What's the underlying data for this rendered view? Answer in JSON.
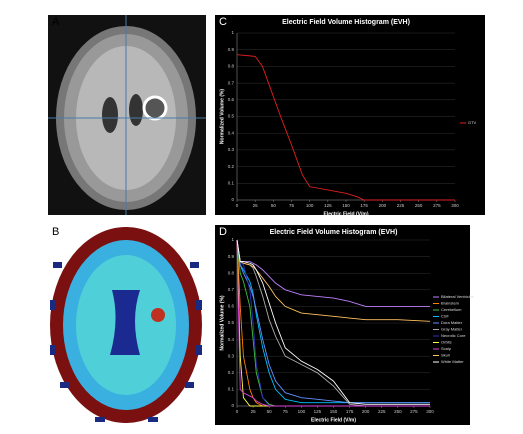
{
  "panel_labels": [
    "A",
    "B",
    "C",
    "D"
  ],
  "chart_data": [
    {
      "type": "line",
      "title": "Electric Field Volume Histogram (EVH)",
      "x_label": "Electric Field (V/m)",
      "y_label": "Normalized Volume (%)",
      "x": [
        0,
        25,
        35,
        50,
        60,
        75,
        90,
        100,
        125,
        150,
        165,
        175,
        200,
        250,
        300
      ],
      "series": [
        {
          "name": "GTV",
          "color": "#e02020",
          "values": [
            0.87,
            0.86,
            0.8,
            0.62,
            0.5,
            0.33,
            0.15,
            0.08,
            0.06,
            0.04,
            0.02,
            0,
            0,
            0,
            0
          ]
        }
      ],
      "xlim": [
        0,
        300
      ],
      "ylim": [
        0,
        1
      ],
      "xticks": [
        0,
        25,
        50,
        75,
        100,
        125,
        150,
        175,
        200,
        225,
        250,
        275,
        300
      ],
      "yticks": [
        0,
        0.1,
        0.2,
        0.3,
        0.4,
        0.5,
        0.6,
        0.7,
        0.8,
        0.9,
        1
      ],
      "grid": true,
      "legend": "right"
    },
    {
      "type": "line",
      "title": "Electric Field Volume Histogram (EVH)",
      "x_label": "Electric Field (V/m)",
      "y_label": "Normalized Volume (%)",
      "x": [
        0,
        5,
        10,
        20,
        25,
        30,
        40,
        50,
        60,
        75,
        100,
        125,
        150,
        175,
        200,
        250,
        300
      ],
      "series": [
        {
          "name": "Bilateral Ventricles",
          "color": "#c080ff",
          "values": [
            1,
            0.87,
            0.87,
            0.87,
            0.86,
            0.85,
            0.82,
            0.78,
            0.74,
            0.7,
            0.67,
            0.66,
            0.65,
            0.63,
            0.6,
            0.6,
            0.6
          ]
        },
        {
          "name": "Brainstem",
          "color": "#ff8000",
          "values": [
            1,
            0.6,
            0.3,
            0.1,
            0.05,
            0.02,
            0,
            0,
            0,
            0,
            0,
            0,
            0,
            0,
            0,
            0,
            0
          ]
        },
        {
          "name": "Cerebellum",
          "color": "#40c040",
          "values": [
            1,
            0.8,
            0.75,
            0.6,
            0.4,
            0.2,
            0.05,
            0.01,
            0,
            0,
            0,
            0,
            0,
            0,
            0,
            0,
            0
          ]
        },
        {
          "name": "CSF",
          "color": "#00c0ff",
          "values": [
            1,
            0.85,
            0.82,
            0.75,
            0.68,
            0.55,
            0.35,
            0.2,
            0.1,
            0.04,
            0.02,
            0.02,
            0.02,
            0.02,
            0.02,
            0.02,
            0.02
          ]
        },
        {
          "name": "Dura Matter",
          "color": "#6090ff",
          "values": [
            1,
            0.85,
            0.8,
            0.72,
            0.66,
            0.58,
            0.4,
            0.25,
            0.15,
            0.08,
            0.05,
            0.04,
            0.03,
            0.02,
            0.02,
            0.02,
            0.02
          ]
        },
        {
          "name": "Gray Matter",
          "color": "#aaaaaa",
          "values": [
            1,
            0.87,
            0.86,
            0.85,
            0.83,
            0.78,
            0.66,
            0.52,
            0.42,
            0.3,
            0.25,
            0.2,
            0.12,
            0.01,
            0,
            0,
            0
          ]
        },
        {
          "name": "Necrotic Core",
          "color": "#3030c0",
          "values": [
            1,
            0.87,
            0.85,
            0.7,
            0.5,
            0.25,
            0.05,
            0,
            0,
            0,
            0,
            0,
            0,
            0,
            0,
            0,
            0
          ]
        },
        {
          "name": "Orbits",
          "color": "#ffff40",
          "values": [
            1,
            0.3,
            0.05,
            0,
            0,
            0,
            0,
            0,
            0,
            0,
            0,
            0,
            0,
            0,
            0,
            0,
            0
          ]
        },
        {
          "name": "Scalp",
          "color": "#e040e0",
          "values": [
            1,
            0.1,
            0.08,
            0.06,
            0.05,
            0.03,
            0.01,
            0,
            0,
            0,
            0,
            0,
            0,
            0,
            0,
            0,
            0
          ]
        },
        {
          "name": "Skull",
          "color": "#ffc060",
          "values": [
            1,
            0.87,
            0.86,
            0.85,
            0.84,
            0.82,
            0.77,
            0.72,
            0.66,
            0.6,
            0.56,
            0.55,
            0.54,
            0.53,
            0.52,
            0.52,
            0.51
          ]
        },
        {
          "name": "White Matter",
          "color": "#ffffff",
          "values": [
            1,
            0.87,
            0.87,
            0.86,
            0.85,
            0.82,
            0.74,
            0.62,
            0.5,
            0.35,
            0.27,
            0.22,
            0.15,
            0.02,
            0.01,
            0.01,
            0.01
          ]
        }
      ],
      "xlim": [
        0,
        300
      ],
      "ylim": [
        0,
        1
      ],
      "xticks": [
        0,
        25,
        50,
        75,
        100,
        125,
        150,
        175,
        200,
        225,
        250,
        275,
        300
      ],
      "yticks": [
        0,
        0.1,
        0.2,
        0.3,
        0.4,
        0.5,
        0.6,
        0.7,
        0.8,
        0.9,
        1
      ],
      "grid": true,
      "legend": "right"
    }
  ]
}
